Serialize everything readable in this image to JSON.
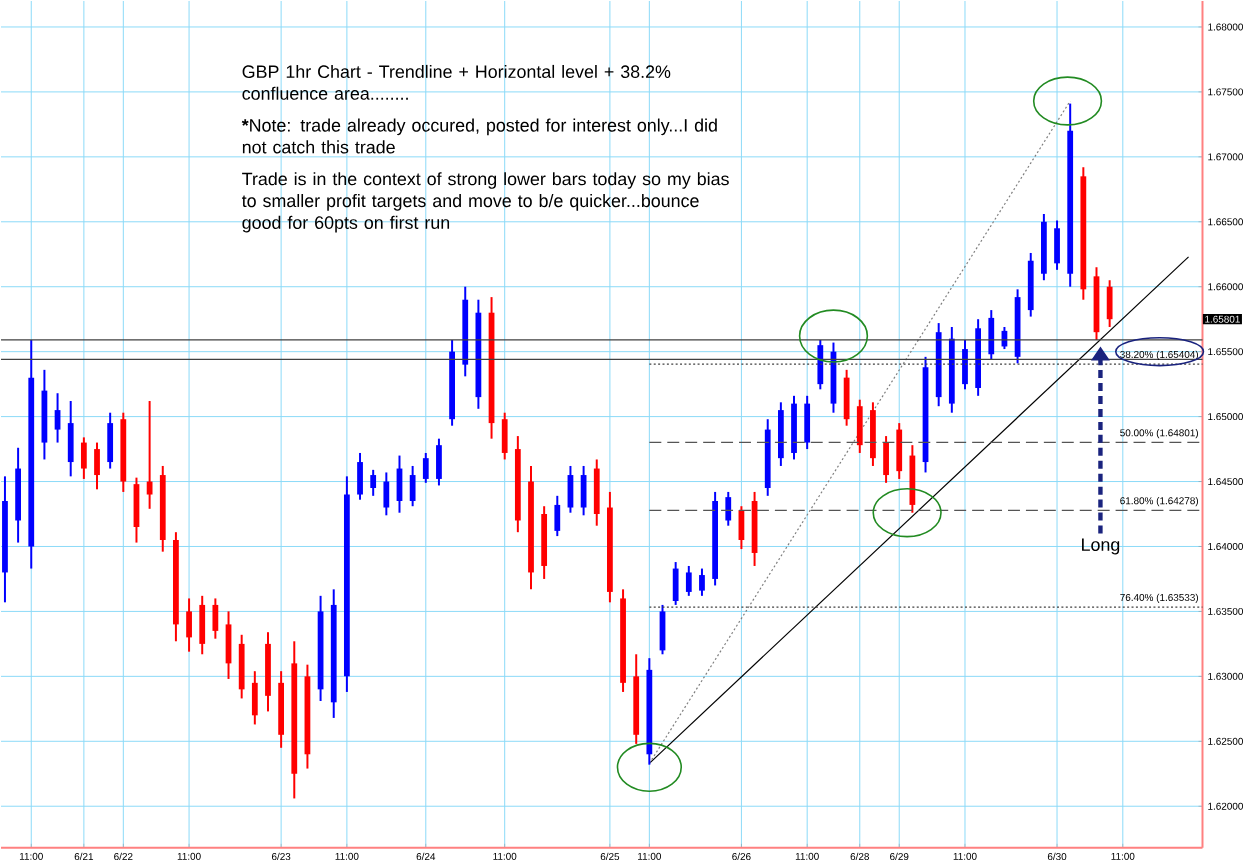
{
  "chart_data": {
    "type": "candlestick",
    "title": "GBP 1hr Chart - Trendline + Horizontal level + 38.2% confluence area........",
    "annotations": [
      "*****Note: trade already occured, posted for interest only...I did not catch this trade",
      "Trade is in the context of strong lower bars today so my bias to smaller profit targets and move to b/e quicker...bounce good for 60pts on first run",
      {
        "text": "Long",
        "y": 1.6554
      },
      "1.65801"
    ],
    "categories": [
      null,
      null,
      "11:00",
      null,
      null,
      null,
      "6/21",
      null,
      null,
      "6/22",
      null,
      null,
      null,
      null,
      "11:00",
      null,
      null,
      null,
      null,
      null,
      null,
      "6/23",
      null,
      null,
      null,
      null,
      "11:00",
      null,
      null,
      null,
      null,
      null,
      "6/24",
      null,
      null,
      null,
      null,
      null,
      "11:00",
      null,
      null,
      null,
      null,
      null,
      null,
      null,
      "6/25",
      null,
      null,
      "11:00",
      null,
      null,
      null,
      null,
      null,
      null,
      "6/26",
      null,
      null,
      null,
      null,
      "11:00",
      null,
      null,
      null,
      "6/28",
      null,
      null,
      "6/29",
      null,
      null,
      null,
      null,
      "11:00",
      null,
      null,
      null,
      null,
      null,
      null,
      "6/30",
      null,
      null,
      null,
      null,
      "11:00",
      null,
      null,
      null,
      null,
      null
    ],
    "ohlc": [
      [
        1.638,
        1.6454,
        1.6357,
        1.6435
      ],
      [
        1.642,
        1.6476,
        1.6403,
        1.646
      ],
      [
        1.64,
        1.6559,
        1.6383,
        1.653
      ],
      [
        1.648,
        1.6536,
        1.6467,
        1.652
      ],
      [
        1.649,
        1.6518,
        1.648,
        1.6505
      ],
      [
        1.6465,
        1.6512,
        1.6454,
        1.6495
      ],
      [
        1.648,
        1.6484,
        1.6452,
        1.646
      ],
      [
        1.6475,
        1.648,
        1.6444,
        1.6455
      ],
      [
        1.6465,
        1.6503,
        1.646,
        1.6495
      ],
      [
        1.6498,
        1.6503,
        1.6442,
        1.645
      ],
      [
        1.6448,
        1.6453,
        1.6403,
        1.6415
      ],
      [
        1.645,
        1.6512,
        1.6429,
        1.644
      ],
      [
        1.6455,
        1.6462,
        1.6396,
        1.6405
      ],
      [
        1.6405,
        1.6411,
        1.6327,
        1.634
      ],
      [
        1.635,
        1.636,
        1.6319,
        1.633
      ],
      [
        1.6355,
        1.6362,
        1.6317,
        1.6325
      ],
      [
        1.6355,
        1.636,
        1.6329,
        1.6335
      ],
      [
        1.634,
        1.635,
        1.6298,
        1.631
      ],
      [
        1.6325,
        1.6332,
        1.6283,
        1.629
      ],
      [
        1.6295,
        1.6304,
        1.6263,
        1.627
      ],
      [
        1.6325,
        1.6334,
        1.6273,
        1.6285
      ],
      [
        1.6295,
        1.6304,
        1.6245,
        1.6255
      ],
      [
        1.631,
        1.6327,
        1.6206,
        1.6225
      ],
      [
        1.63,
        1.6309,
        1.6229,
        1.624
      ],
      [
        1.629,
        1.6362,
        1.6281,
        1.635
      ],
      [
        1.628,
        1.6367,
        1.6268,
        1.6355
      ],
      [
        1.63,
        1.6454,
        1.6288,
        1.644
      ],
      [
        1.644,
        1.6472,
        1.6436,
        1.6465
      ],
      [
        1.6445,
        1.6459,
        1.6439,
        1.6455
      ],
      [
        1.643,
        1.6457,
        1.6424,
        1.645
      ],
      [
        1.6435,
        1.647,
        1.6426,
        1.646
      ],
      [
        1.6435,
        1.6462,
        1.6431,
        1.6455
      ],
      [
        1.6452,
        1.6472,
        1.6449,
        1.6468
      ],
      [
        1.6452,
        1.6483,
        1.6447,
        1.6478
      ],
      [
        1.6498,
        1.6559,
        1.6493,
        1.655
      ],
      [
        1.654,
        1.66,
        1.6531,
        1.659
      ],
      [
        1.6515,
        1.659,
        1.6506,
        1.658
      ],
      [
        1.658,
        1.6592,
        1.6483,
        1.6495
      ],
      [
        1.6498,
        1.6503,
        1.6467,
        1.6472
      ],
      [
        1.6475,
        1.6485,
        1.6411,
        1.642
      ],
      [
        1.645,
        1.6462,
        1.6367,
        1.638
      ],
      [
        1.6425,
        1.6431,
        1.6375,
        1.6385
      ],
      [
        1.6412,
        1.6439,
        1.6408,
        1.6432
      ],
      [
        1.643,
        1.6462,
        1.6426,
        1.6455
      ],
      [
        1.643,
        1.6462,
        1.6424,
        1.6455
      ],
      [
        1.646,
        1.6467,
        1.6416,
        1.6425
      ],
      [
        1.643,
        1.6442,
        1.6357,
        1.6365
      ],
      [
        1.636,
        1.6367,
        1.6288,
        1.6295
      ],
      [
        1.63,
        1.6317,
        1.6248,
        1.6255
      ],
      [
        1.624,
        1.6314,
        1.6232,
        1.6305
      ],
      [
        1.632,
        1.6355,
        1.6317,
        1.635
      ],
      [
        1.6358,
        1.6388,
        1.6355,
        1.6383
      ],
      [
        1.6365,
        1.6385,
        1.6362,
        1.638
      ],
      [
        1.6366,
        1.6383,
        1.6362,
        1.6378
      ],
      [
        1.6375,
        1.6442,
        1.637,
        1.6435
      ],
      [
        1.642,
        1.6442,
        1.6416,
        1.6438
      ],
      [
        1.6428,
        1.6431,
        1.6398,
        1.6405
      ],
      [
        1.6435,
        1.6442,
        1.6385,
        1.6395
      ],
      [
        1.6445,
        1.6498,
        1.6439,
        1.649
      ],
      [
        1.6468,
        1.6511,
        1.6462,
        1.6505
      ],
      [
        1.6472,
        1.6516,
        1.6467,
        1.651
      ],
      [
        1.648,
        1.6516,
        1.6475,
        1.651
      ],
      [
        1.6525,
        1.6559,
        1.6521,
        1.6555
      ],
      [
        1.651,
        1.6557,
        1.6503,
        1.655
      ],
      [
        1.653,
        1.6536,
        1.6493,
        1.6498
      ],
      [
        1.6508,
        1.6513,
        1.6472,
        1.6478
      ],
      [
        1.6505,
        1.6511,
        1.6462,
        1.6468
      ],
      [
        1.648,
        1.6485,
        1.6449,
        1.6455
      ],
      [
        1.649,
        1.6495,
        1.6452,
        1.6458
      ],
      [
        1.647,
        1.6478,
        1.6426,
        1.6432
      ],
      [
        1.6465,
        1.6546,
        1.6457,
        1.6538
      ],
      [
        1.6515,
        1.6572,
        1.6508,
        1.6565
      ],
      [
        1.651,
        1.6569,
        1.6503,
        1.656
      ],
      [
        1.6525,
        1.6559,
        1.6521,
        1.6552
      ],
      [
        1.6522,
        1.6575,
        1.6516,
        1.6568
      ],
      [
        1.6548,
        1.6582,
        1.6544,
        1.6576
      ],
      [
        1.6554,
        1.6569,
        1.6552,
        1.6566
      ],
      [
        1.6546,
        1.6598,
        1.6541,
        1.6592
      ],
      [
        1.6582,
        1.6626,
        1.6577,
        1.662
      ],
      [
        1.661,
        1.6656,
        1.6605,
        1.665
      ],
      [
        1.6618,
        1.6651,
        1.6613,
        1.6645
      ],
      [
        1.661,
        1.6741,
        1.66,
        1.672
      ],
      [
        1.6685,
        1.6692,
        1.659,
        1.6598
      ],
      [
        1.6608,
        1.6615,
        1.6559,
        1.6565
      ],
      [
        1.66,
        1.6605,
        1.6569,
        1.6575
      ],
      null,
      null,
      null,
      null,
      null,
      null
    ],
    "colors": [
      "#0000ff",
      "#0000ff",
      "#0000ff",
      "#0000ff",
      "#0000ff",
      "#0000ff",
      "#ff0000",
      "#ff0000",
      "#0000ff",
      "#ff0000",
      "#ff0000",
      "#ff0000",
      "#ff0000",
      "#ff0000",
      "#ff0000",
      "#ff0000",
      "#ff0000",
      "#ff0000",
      "#ff0000",
      "#ff0000",
      "#ff0000",
      "#ff0000",
      "#ff0000",
      "#ff0000",
      "#0000ff",
      "#0000ff",
      "#0000ff",
      "#0000ff",
      "#0000ff",
      "#0000ff",
      "#0000ff",
      "#0000ff",
      "#0000ff",
      "#0000ff",
      "#0000ff",
      "#0000ff",
      "#0000ff",
      "#ff0000",
      "#ff0000",
      "#ff0000",
      "#ff0000",
      "#ff0000",
      "#0000ff",
      "#0000ff",
      "#0000ff",
      "#ff0000",
      "#ff0000",
      "#ff0000",
      "#ff0000",
      "#0000ff",
      "#0000ff",
      "#0000ff",
      "#0000ff",
      "#0000ff",
      "#0000ff",
      "#0000ff",
      "#ff0000",
      "#ff0000",
      "#0000ff",
      "#0000ff",
      "#0000ff",
      "#0000ff",
      "#0000ff",
      "#0000ff",
      "#ff0000",
      "#ff0000",
      "#ff0000",
      "#ff0000",
      "#ff0000",
      "#ff0000",
      "#0000ff",
      "#0000ff",
      "#0000ff",
      "#0000ff",
      "#0000ff",
      "#0000ff",
      "#0000ff",
      "#0000ff",
      "#0000ff",
      "#0000ff",
      "#0000ff",
      "#0000ff",
      "#ff0000",
      "#ff0000",
      "#ff0000",
      null,
      null,
      null,
      null,
      null,
      null
    ],
    "series": [
      {
        "type": "line",
        "color": "#000000",
        "line_style": "solid",
        "values": [
          null,
          null,
          null,
          null,
          null,
          null,
          null,
          null,
          null,
          null,
          null,
          null,
          null,
          null,
          null,
          null,
          null,
          null,
          null,
          null,
          null,
          null,
          null,
          null,
          null,
          null,
          null,
          null,
          null,
          null,
          null,
          null,
          null,
          null,
          null,
          null,
          null,
          null,
          null,
          null,
          null,
          null,
          null,
          null,
          null,
          null,
          null,
          null,
          null,
          1.6233,
          null,
          null,
          null,
          null,
          null,
          null,
          null,
          null,
          null,
          null,
          null,
          null,
          null,
          null,
          null,
          null,
          null,
          null,
          null,
          null,
          null,
          null,
          null,
          null,
          null,
          null,
          null,
          null,
          null,
          null,
          null,
          null,
          null,
          null,
          null,
          null,
          null,
          null,
          null,
          null,
          1.6623
        ]
      },
      {
        "type": "line",
        "color": "#7f7f7f",
        "line_style": "dotted",
        "values": [
          null,
          null,
          null,
          null,
          null,
          null,
          null,
          null,
          null,
          null,
          null,
          null,
          null,
          null,
          null,
          null,
          null,
          null,
          null,
          null,
          null,
          null,
          null,
          null,
          null,
          null,
          null,
          null,
          null,
          null,
          null,
          null,
          null,
          null,
          null,
          null,
          null,
          null,
          null,
          null,
          null,
          null,
          null,
          null,
          null,
          null,
          null,
          null,
          null,
          1.6233,
          null,
          null,
          null,
          null,
          null,
          null,
          null,
          null,
          null,
          null,
          null,
          null,
          null,
          null,
          null,
          null,
          null,
          null,
          null,
          null,
          null,
          null,
          null,
          null,
          null,
          null,
          null,
          null,
          null,
          null,
          null,
          1.6743,
          null,
          null,
          null,
          null,
          null,
          null,
          null,
          null,
          null
        ]
      }
    ],
    "ref_lines": [
      {
        "axis": "y",
        "value": 1.6559,
        "color": "#404040",
        "line_style": "solid"
      },
      {
        "axis": "y",
        "value": 1.6544,
        "color": "#404040",
        "line_style": "solid"
      },
      {
        "axis": "y",
        "value": 1.65404,
        "label": "38.20% (1.65404)",
        "color": "#404040",
        "line_style": "dotted"
      },
      {
        "axis": "y",
        "value": 1.64801,
        "label": "50.00% (1.64801)",
        "color": "#555555",
        "line_style": "dashed"
      },
      {
        "axis": "y",
        "value": 1.64278,
        "label": "61.80% (1.64278)",
        "color": "#555555",
        "line_style": "dashed"
      },
      {
        "axis": "y",
        "value": 1.63533,
        "label": "76.40% (1.63533)",
        "color": "#404040",
        "line_style": "dotted"
      }
    ],
    "ylim": [
      1.6168,
      1.682
    ],
    "yticks": [
      {
        "value": 1.62,
        "label": "1.62000"
      },
      {
        "value": 1.625,
        "label": "1.62500"
      },
      {
        "value": 1.63,
        "label": "1.63000"
      },
      {
        "value": 1.635,
        "label": "1.63500"
      },
      {
        "value": 1.64,
        "label": "1.64000"
      },
      {
        "value": 1.645,
        "label": "1.64500"
      },
      {
        "value": 1.65,
        "label": "1.65000"
      },
      {
        "value": 1.655,
        "label": "1.65500"
      },
      {
        "value": 1.66,
        "label": "1.66000"
      },
      {
        "value": 1.665,
        "label": "1.66500"
      },
      {
        "value": 1.67,
        "label": "1.67000"
      },
      {
        "value": 1.675,
        "label": "1.67500"
      },
      {
        "value": 1.68,
        "label": "1.68000"
      }
    ],
    "grid": true
  }
}
